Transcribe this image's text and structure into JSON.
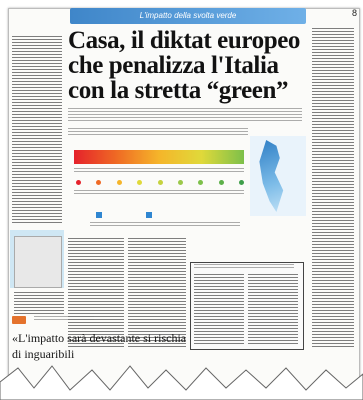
{
  "page": {
    "section_bar": "L'impatto della svolta verde",
    "page_number": "8",
    "headline": "Casa, il diktat europeo che penalizza l'Italia con la stretta “green”",
    "deck": "",
    "graphic_title": "",
    "footer_label": "",
    "footer_headline": "«L'impatto sarà devastante si rischia di inguaribili"
  },
  "colors": {
    "section_bar": "#4b92d3",
    "accent": "#e4722c",
    "energy_scale": [
      "#e5222b",
      "#ef6a24",
      "#f5b52a",
      "#e0d93a",
      "#7dc04a"
    ]
  }
}
